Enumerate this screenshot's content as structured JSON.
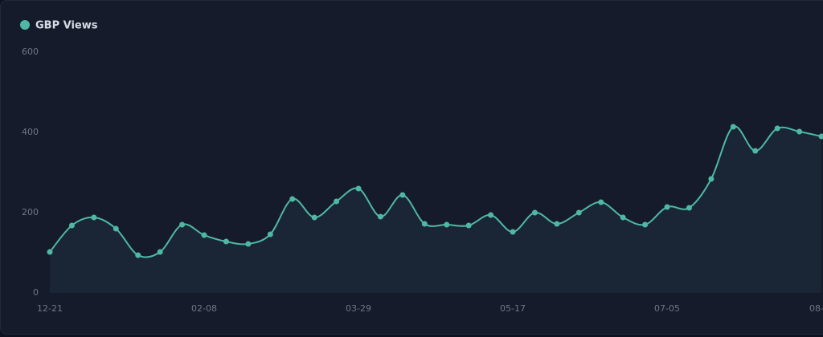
{
  "chart_data": {
    "type": "line",
    "series": [
      {
        "name": "GBP Views",
        "color": "#4fb8a5",
        "values": [
          102,
          168,
          188,
          160,
          94,
          102,
          170,
          144,
          128,
          122,
          146,
          234,
          188,
          228,
          260,
          190,
          244,
          172,
          170,
          168,
          194,
          152,
          200,
          172,
          200,
          226,
          188,
          170,
          214,
          212,
          284,
          414,
          354,
          410,
          402,
          390
        ]
      }
    ],
    "categories": [
      "12-21",
      null,
      null,
      null,
      null,
      null,
      null,
      "02-08",
      null,
      null,
      null,
      null,
      null,
      null,
      "03-29",
      null,
      null,
      null,
      null,
      null,
      null,
      "05-17",
      null,
      null,
      null,
      null,
      null,
      null,
      "07-05",
      null,
      null,
      null,
      null,
      null,
      null,
      "08-"
    ],
    "ylim": [
      0,
      600
    ],
    "yticks": [
      0,
      200,
      400,
      600
    ],
    "grid": false,
    "legend": "top-left"
  }
}
